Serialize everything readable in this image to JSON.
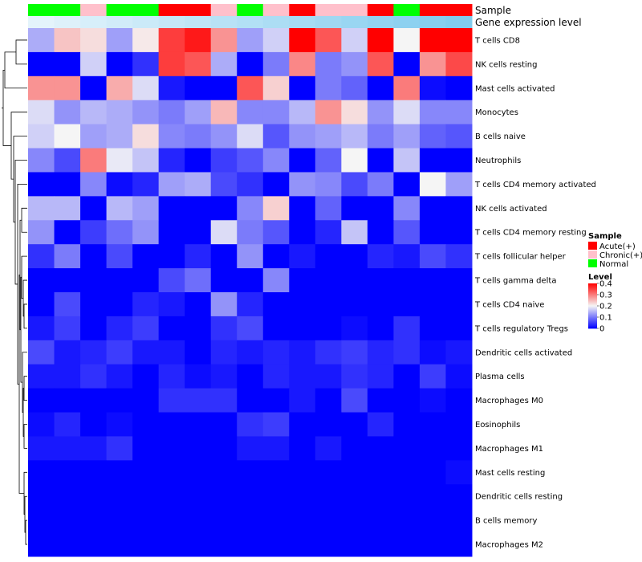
{
  "chart_data": {
    "type": "heatmap",
    "title": "",
    "annotation_labels": [
      "Sample",
      "Gene expression level"
    ],
    "annotation_rows": {
      "sample": [
        "Normal",
        "Normal",
        "Chronic(+)",
        "Normal",
        "Normal",
        "Acute(+)",
        "Acute(+)",
        "Chronic(+)",
        "Normal",
        "Chronic(+)",
        "Acute(+)",
        "Chronic(+)",
        "Chronic(+)",
        "Acute(+)",
        "Normal",
        "Acute(+)",
        "Acute(+)"
      ],
      "gene_expression_level": [
        0.05,
        0.1,
        0.15,
        0.2,
        0.25,
        0.3,
        0.35,
        0.4,
        0.45,
        0.5,
        0.55,
        0.6,
        0.65,
        0.7,
        0.75,
        0.8,
        0.85
      ]
    },
    "row_labels": [
      "T cells CD8",
      "NK cells resting",
      "Mast cells activated",
      "Monocytes",
      "B cells naive",
      "Neutrophils",
      "T cells CD4 memory activated",
      "NK cells activated",
      "T cells CD4 memory resting",
      "T cells follicular helper",
      "T cells gamma delta",
      "T cells CD4 naive",
      "T cells regulatory  Tregs",
      "Dendritic cells activated",
      "Plasma cells",
      "Macrophages M0",
      "Eosinophils",
      "Macrophages M1",
      "Mast cells resting",
      "Dendritic cells resting",
      "B cells memory",
      "Macrophages M2"
    ],
    "values": [
      [
        0.14,
        0.24,
        0.22,
        0.13,
        0.21,
        0.35,
        0.38,
        0.28,
        0.13,
        0.17,
        0.4,
        0.33,
        0.17,
        0.4,
        0.2,
        0.4,
        0.4
      ],
      [
        0.0,
        0.0,
        0.17,
        0.0,
        0.04,
        0.35,
        0.33,
        0.14,
        0.0,
        0.1,
        0.29,
        0.1,
        0.12,
        0.33,
        0.0,
        0.28,
        0.34
      ],
      [
        0.28,
        0.28,
        0.0,
        0.26,
        0.18,
        0.02,
        0.0,
        0.0,
        0.33,
        0.23,
        0.0,
        0.1,
        0.08,
        0.0,
        0.3,
        0.01,
        0.0
      ],
      [
        0.18,
        0.12,
        0.15,
        0.14,
        0.12,
        0.1,
        0.13,
        0.25,
        0.11,
        0.11,
        0.15,
        0.28,
        0.22,
        0.12,
        0.18,
        0.11,
        0.11
      ],
      [
        0.17,
        0.2,
        0.13,
        0.14,
        0.22,
        0.11,
        0.1,
        0.12,
        0.18,
        0.07,
        0.12,
        0.13,
        0.15,
        0.1,
        0.13,
        0.08,
        0.07
      ],
      [
        0.11,
        0.06,
        0.3,
        0.19,
        0.16,
        0.03,
        0.0,
        0.05,
        0.07,
        0.11,
        0.0,
        0.08,
        0.2,
        0.0,
        0.16,
        0.0,
        0.0
      ],
      [
        0.0,
        0.0,
        0.11,
        0.01,
        0.03,
        0.13,
        0.14,
        0.06,
        0.04,
        0.0,
        0.12,
        0.11,
        0.06,
        0.1,
        0.0,
        0.2,
        0.13
      ],
      [
        0.15,
        0.15,
        0.0,
        0.15,
        0.13,
        0.0,
        0.0,
        0.0,
        0.11,
        0.23,
        0.0,
        0.08,
        0.0,
        0.0,
        0.11,
        0.0,
        0.0
      ],
      [
        0.12,
        0.0,
        0.05,
        0.09,
        0.12,
        0.0,
        0.0,
        0.18,
        0.1,
        0.07,
        0.0,
        0.03,
        0.16,
        0.0,
        0.07,
        0.0,
        0.0
      ],
      [
        0.04,
        0.1,
        0.0,
        0.06,
        0.0,
        0.0,
        0.03,
        0.0,
        0.12,
        0.0,
        0.02,
        0.0,
        0.0,
        0.03,
        0.02,
        0.06,
        0.04
      ],
      [
        0.0,
        0.0,
        0.0,
        0.0,
        0.0,
        0.06,
        0.09,
        0.0,
        0.0,
        0.11,
        0.0,
        0.0,
        0.0,
        0.0,
        0.0,
        0.0,
        0.0
      ],
      [
        0.0,
        0.06,
        0.0,
        0.0,
        0.03,
        0.02,
        0.0,
        0.12,
        0.03,
        0.0,
        0.0,
        0.0,
        0.0,
        0.0,
        0.0,
        0.0,
        0.0
      ],
      [
        0.02,
        0.05,
        0.0,
        0.03,
        0.05,
        0.0,
        0.0,
        0.04,
        0.06,
        0.0,
        0.0,
        0.0,
        0.01,
        0.0,
        0.04,
        0.0,
        0.0
      ],
      [
        0.06,
        0.02,
        0.03,
        0.05,
        0.02,
        0.02,
        0.0,
        0.03,
        0.02,
        0.03,
        0.02,
        0.04,
        0.05,
        0.03,
        0.04,
        0.01,
        0.02
      ],
      [
        0.02,
        0.02,
        0.04,
        0.02,
        0.0,
        0.03,
        0.01,
        0.02,
        0.0,
        0.03,
        0.02,
        0.02,
        0.04,
        0.03,
        0.0,
        0.05,
        0.01
      ],
      [
        0.0,
        0.0,
        0.0,
        0.0,
        0.0,
        0.04,
        0.04,
        0.04,
        0.0,
        0.0,
        0.02,
        0.0,
        0.06,
        0.0,
        0.0,
        0.01,
        0.0
      ],
      [
        0.01,
        0.03,
        0.0,
        0.01,
        0.0,
        0.0,
        0.0,
        0.0,
        0.04,
        0.05,
        0.0,
        0.0,
        0.0,
        0.03,
        0.0,
        0.0,
        0.0
      ],
      [
        0.02,
        0.02,
        0.02,
        0.04,
        0.0,
        0.0,
        0.0,
        0.0,
        0.02,
        0.02,
        0.0,
        0.02,
        0.0,
        0.0,
        0.0,
        0.0,
        0.0
      ],
      [
        0.0,
        0.0,
        0.0,
        0.0,
        0.0,
        0.0,
        0.0,
        0.0,
        0.0,
        0.0,
        0.0,
        0.0,
        0.0,
        0.0,
        0.0,
        0.0,
        0.01
      ],
      [
        0.0,
        0.0,
        0.0,
        0.0,
        0.0,
        0.0,
        0.0,
        0.0,
        0.0,
        0.0,
        0.0,
        0.0,
        0.0,
        0.0,
        0.0,
        0.0,
        0.0
      ],
      [
        0.0,
        0.0,
        0.0,
        0.0,
        0.0,
        0.0,
        0.0,
        0.0,
        0.0,
        0.0,
        0.0,
        0.0,
        0.0,
        0.0,
        0.0,
        0.0,
        0.0
      ],
      [
        0.0,
        0.0,
        0.0,
        0.0,
        0.0,
        0.0,
        0.0,
        0.0,
        0.0,
        0.0,
        0.0,
        0.0,
        0.0,
        0.0,
        0.0,
        0.0,
        0.0
      ]
    ],
    "color_scale": {
      "min": 0,
      "mid": 0.2,
      "max": 0.4,
      "low_color": "#0000ff",
      "mid_color": "#f5f5f5",
      "high_color": "#ff0000"
    },
    "sample_colors": {
      "Acute(+)": "#ff0000",
      "Chronic(+)": "#ffc0cb",
      "Normal": "#00ff00"
    },
    "gene_expression_colors": {
      "low": "#eaf6fc",
      "high": "#6ec4ec"
    },
    "legend": {
      "sample_title": "Sample",
      "sample_entries": [
        "Acute(+)",
        "Chronic(+)",
        "Normal"
      ],
      "level_title": "Level",
      "level_ticks": [
        "0.4",
        "0.3",
        "0.2",
        "0.1",
        "0"
      ],
      "level_tick_values": [
        0.4,
        0.3,
        0.2,
        0.1,
        0
      ],
      "placement": "right"
    },
    "dendrogram": "left"
  }
}
